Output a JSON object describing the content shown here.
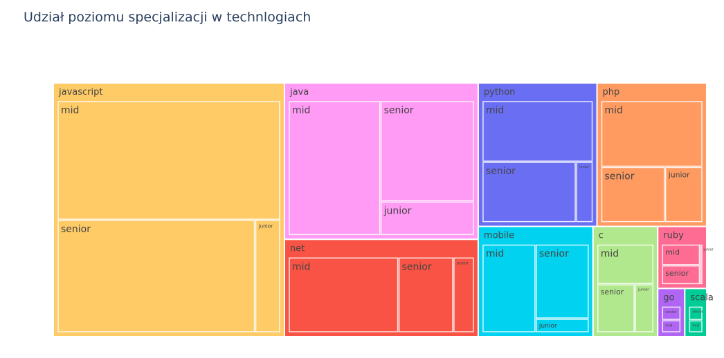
{
  "chart_data": {
    "type": "treemap",
    "title": "Udział poziomu specjalizacji w technlogiach",
    "groups": [
      {
        "name": "javascript",
        "color": "#FECB67",
        "children": [
          {
            "name": "mid",
            "value": 48.6
          },
          {
            "name": "senior",
            "value": 40.8
          },
          {
            "name": "junior",
            "value": 5.2
          }
        ]
      },
      {
        "name": "java",
        "color": "#FF9AF5",
        "children": [
          {
            "name": "mid",
            "value": 24.2
          },
          {
            "name": "senior",
            "value": 18.5
          },
          {
            "name": "junior",
            "value": 6.2
          }
        ]
      },
      {
        "name": "net",
        "color": "#F85345",
        "children": [
          {
            "name": "mid",
            "value": 18.0
          },
          {
            "name": "senior",
            "value": 9.0
          },
          {
            "name": "junior",
            "value": 3.4
          }
        ]
      },
      {
        "name": "python",
        "color": "#6A6EF3",
        "children": [
          {
            "name": "mid",
            "value": 13.8
          },
          {
            "name": "senior",
            "value": 11.6
          },
          {
            "name": "junior",
            "value": 2.1
          }
        ]
      },
      {
        "name": "php",
        "color": "#FF9B61",
        "children": [
          {
            "name": "mid",
            "value": 13.8
          },
          {
            "name": "senior",
            "value": 7.3
          },
          {
            "name": "junior",
            "value": 4.3
          }
        ]
      },
      {
        "name": "mobile",
        "color": "#00D2EF",
        "children": [
          {
            "name": "mid",
            "value": 10.2
          },
          {
            "name": "senior",
            "value": 8.6
          },
          {
            "name": "junior",
            "value": 1.6
          }
        ]
      },
      {
        "name": "c",
        "color": "#B1E78D",
        "children": [
          {
            "name": "mid",
            "value": 5.2
          },
          {
            "name": "senior",
            "value": 4.2
          },
          {
            "name": "junior",
            "value": 2.1
          }
        ]
      },
      {
        "name": "ruby",
        "color": "#FE6C94",
        "children": [
          {
            "name": "mid",
            "value": 2.4
          },
          {
            "name": "senior",
            "value": 2.2
          },
          {
            "name": "junior",
            "value": 0.3
          }
        ]
      },
      {
        "name": "go",
        "color": "#B165F5",
        "children": [
          {
            "name": "senior",
            "value": 1.1
          },
          {
            "name": "mid",
            "value": 1.0
          }
        ]
      },
      {
        "name": "scala",
        "color": "#00CC96",
        "children": [
          {
            "name": "senior",
            "value": 0.9
          },
          {
            "name": "mid",
            "value": 0.8
          }
        ]
      }
    ]
  }
}
